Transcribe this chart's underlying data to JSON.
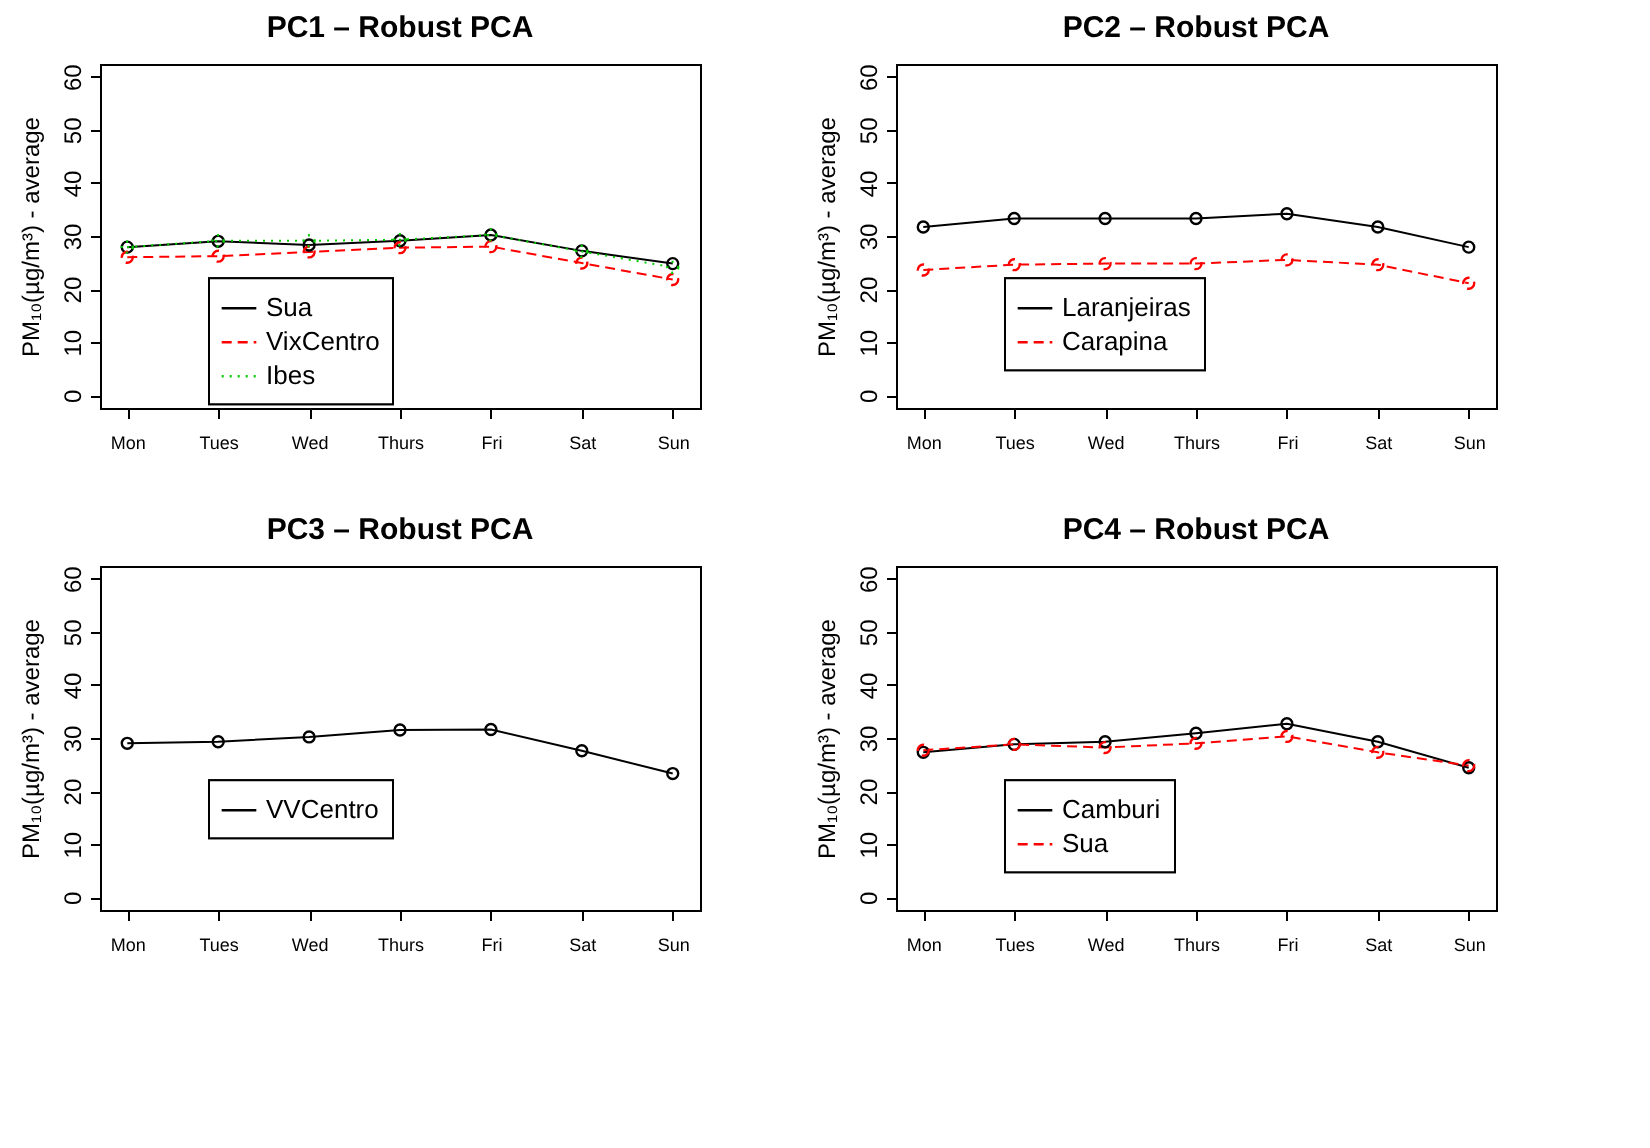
{
  "chart_data": [
    {
      "type": "line",
      "title": "PC1 – Robust PCA",
      "ylabel": "PM₁₀(µg/m³) - average",
      "categories": [
        "Mon",
        "Tues",
        "Wed",
        "Thurs",
        "Fri",
        "Sat",
        "Sun"
      ],
      "ylim": [
        -2.4,
        62.4
      ],
      "yticks": [
        0,
        10,
        20,
        30,
        40,
        50,
        60
      ],
      "legend": "bottom left",
      "marker": "circle",
      "series": [
        {
          "name": "Sua",
          "color": "#000000",
          "line_style": "solid",
          "values": [
            27.9,
            29.0,
            28.3,
            29.1,
            30.2,
            27.2,
            24.8
          ]
        },
        {
          "name": "VixCentro",
          "color": "#ff0000",
          "line_style": "dashed",
          "values": [
            26.0,
            26.2,
            27.0,
            27.8,
            28.0,
            24.9,
            21.8
          ]
        },
        {
          "name": "Ibes",
          "color": "#00cd00",
          "line_style": "dotted",
          "values": [
            27.9,
            29.1,
            29.1,
            29.3,
            30.2,
            27.1,
            24.1
          ]
        }
      ]
    },
    {
      "type": "line",
      "title": "PC2 – Robust PCA",
      "ylabel": "PM₁₀(µg/m³) - average",
      "categories": [
        "Mon",
        "Tues",
        "Wed",
        "Thurs",
        "Fri",
        "Sat",
        "Sun"
      ],
      "ylim": [
        -2.4,
        62.4
      ],
      "yticks": [
        0,
        10,
        20,
        30,
        40,
        50,
        60
      ],
      "legend": "bottom left",
      "marker": "circle",
      "series": [
        {
          "name": "Laranjeiras",
          "color": "#000000",
          "line_style": "solid",
          "values": [
            31.7,
            33.3,
            33.3,
            33.3,
            34.2,
            31.7,
            27.9
          ]
        },
        {
          "name": "Carapina",
          "color": "#ff0000",
          "line_style": "dashed",
          "values": [
            23.6,
            24.6,
            24.8,
            24.8,
            25.5,
            24.6,
            21.1
          ]
        }
      ]
    },
    {
      "type": "line",
      "title": "PC3 – Robust PCA",
      "ylabel": "PM₁₀(µg/m³) - average",
      "categories": [
        "Mon",
        "Tues",
        "Wed",
        "Thurs",
        "Fri",
        "Sat",
        "Sun"
      ],
      "ylim": [
        -2.4,
        62.4
      ],
      "yticks": [
        0,
        10,
        20,
        30,
        40,
        50,
        60
      ],
      "legend": "bottom left",
      "marker": "circle",
      "series": [
        {
          "name": "VVCentro",
          "color": "#000000",
          "line_style": "solid",
          "values": [
            29.0,
            29.3,
            30.2,
            31.5,
            31.6,
            27.6,
            23.3
          ]
        }
      ]
    },
    {
      "type": "line",
      "title": "PC4 – Robust PCA",
      "ylabel": "PM₁₀(µg/m³) - average",
      "categories": [
        "Mon",
        "Tues",
        "Wed",
        "Thurs",
        "Fri",
        "Sat",
        "Sun"
      ],
      "ylim": [
        -2.4,
        62.4
      ],
      "yticks": [
        0,
        10,
        20,
        30,
        40,
        50,
        60
      ],
      "legend": "bottom left",
      "marker": "circle",
      "series": [
        {
          "name": "Camburi",
          "color": "#000000",
          "line_style": "solid",
          "values": [
            27.3,
            28.8,
            29.3,
            30.9,
            32.7,
            29.3,
            24.4
          ]
        },
        {
          "name": "Sua",
          "color": "#ff0000",
          "line_style": "dashed",
          "values": [
            27.7,
            28.8,
            28.2,
            29.0,
            30.3,
            27.3,
            24.8
          ]
        }
      ]
    }
  ]
}
